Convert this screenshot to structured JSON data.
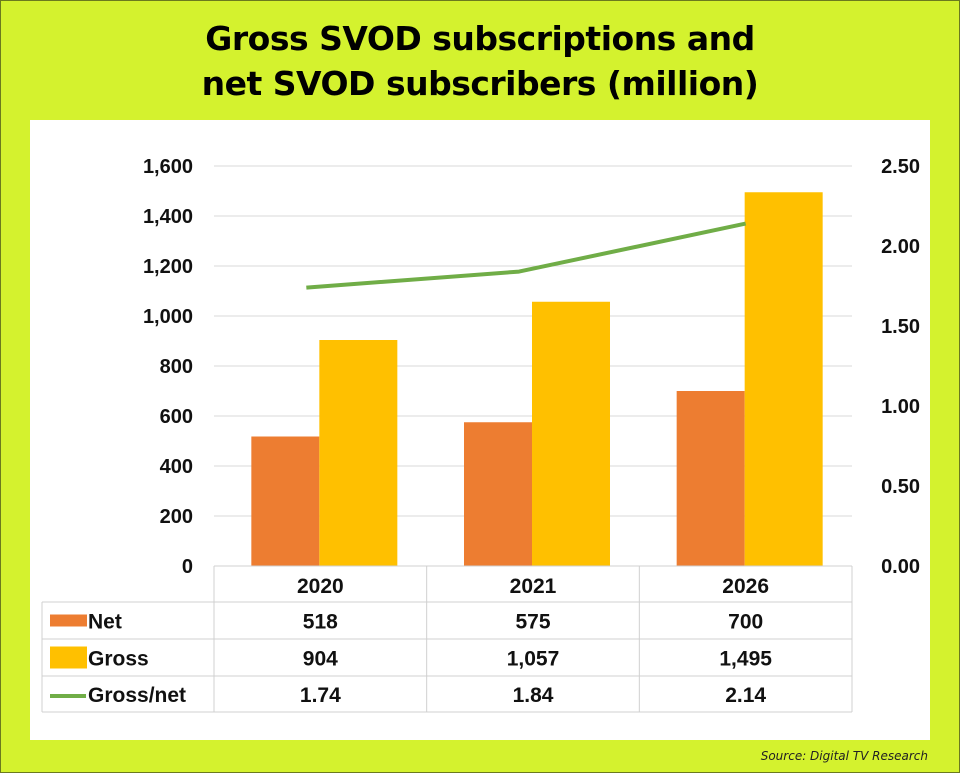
{
  "title_line1": "Gross SVOD subscriptions and",
  "title_line2": "net SVOD subscribers (million)",
  "source": "Source: Digital TV Research",
  "colors": {
    "background": "#d4f22e",
    "net": "#ed7d31",
    "gross": "#ffc000",
    "ratio": "#70ad47",
    "grid": "#d9d9d9"
  },
  "chart_data": {
    "type": "bar",
    "title": "Gross SVOD subscriptions and net SVOD subscribers (million)",
    "categories": [
      "2020",
      "2021",
      "2026"
    ],
    "series": [
      {
        "name": "Net",
        "type": "bar",
        "axis": "left",
        "values": [
          518,
          575,
          700
        ],
        "labels": [
          "518",
          "575",
          "700"
        ]
      },
      {
        "name": "Gross",
        "type": "bar",
        "axis": "left",
        "values": [
          904,
          1057,
          1495
        ],
        "labels": [
          "904",
          "1,057",
          "1,495"
        ]
      },
      {
        "name": "Gross/net",
        "type": "line",
        "axis": "right",
        "values": [
          1.74,
          1.84,
          2.14
        ],
        "labels": [
          "1.74",
          "1.84",
          "2.14"
        ]
      }
    ],
    "y_left": {
      "min": 0,
      "max": 1600,
      "ticks": [
        0,
        200,
        400,
        600,
        800,
        1000,
        1200,
        1400,
        1600
      ],
      "tick_labels": [
        "0",
        "200",
        "400",
        "600",
        "800",
        "1,000",
        "1,200",
        "1,400",
        "1,600"
      ]
    },
    "y_right": {
      "min": 0,
      "max": 2.5,
      "ticks": [
        0,
        0.5,
        1,
        1.5,
        2,
        2.5
      ],
      "tick_labels": [
        "0.00",
        "0.50",
        "1.00",
        "1.50",
        "2.00",
        "2.50"
      ]
    },
    "grid": true,
    "legend": "data-table"
  }
}
